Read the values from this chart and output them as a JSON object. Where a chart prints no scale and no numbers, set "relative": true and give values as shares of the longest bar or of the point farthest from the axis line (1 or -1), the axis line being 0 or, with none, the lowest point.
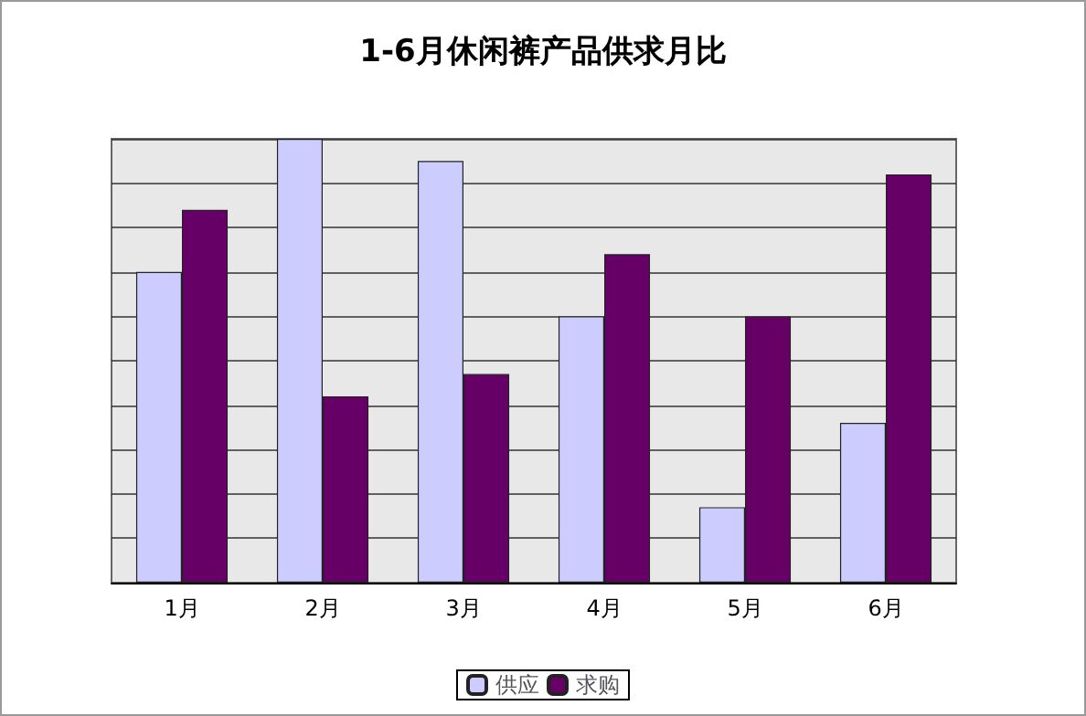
{
  "chart_data": {
    "type": "bar",
    "title": "1-6月休闲裤产品供求月比",
    "categories": [
      "1月",
      "2月",
      "3月",
      "4月",
      "5月",
      "6月"
    ],
    "relative": true,
    "grid": "y",
    "legend": "bottom",
    "series": [
      {
        "name": "供应",
        "color": "#ccccff",
        "values": [
          0.7,
          1,
          0.95,
          0.6,
          0.17,
          0.36
        ]
      },
      {
        "name": "求购",
        "color": "#660066",
        "values": [
          0.84,
          0.42,
          0.47,
          0.74,
          0.6,
          0.92
        ]
      }
    ]
  }
}
